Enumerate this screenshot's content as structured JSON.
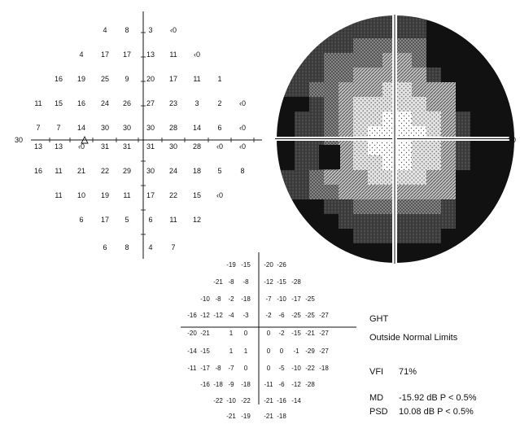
{
  "threshold_map": {
    "axis_extent_label": "30",
    "rows": [
      [
        "4",
        "8",
        "3",
        "‹0"
      ],
      [
        "4",
        "17",
        "17",
        "13",
        "11",
        "‹0"
      ],
      [
        "16",
        "19",
        "25",
        "9",
        "20",
        "17",
        "11",
        "1"
      ],
      [
        "11",
        "15",
        "16",
        "24",
        "26",
        "27",
        "23",
        "3",
        "2",
        "‹0"
      ],
      [
        "7",
        "7",
        "14",
        "30",
        "30",
        "30",
        "28",
        "14",
        "6",
        "‹0"
      ],
      [
        "13",
        "13",
        "‹0",
        "31",
        "31",
        "31",
        "30",
        "28",
        "‹0",
        "‹0"
      ],
      [
        "16",
        "11",
        "21",
        "22",
        "29",
        "30",
        "24",
        "18",
        "5",
        "8"
      ],
      [
        "11",
        "10",
        "19",
        "11",
        "17",
        "22",
        "15",
        "‹0"
      ],
      [
        "6",
        "17",
        "5",
        "6",
        "11",
        "12"
      ],
      [
        "6",
        "8",
        "4",
        "7"
      ]
    ]
  },
  "greyscale_map": {
    "axis_extent_label": "30"
  },
  "total_deviation": {
    "rows": [
      [
        "-19",
        "-15",
        "-20",
        "-26"
      ],
      [
        "-21",
        "-8",
        "-8",
        "-12",
        "-15",
        "-28"
      ],
      [
        "-10",
        "-8",
        "-2",
        "-18",
        "-7",
        "-10",
        "-17",
        "-25"
      ],
      [
        "-16",
        "-12",
        "-12",
        "-4",
        "-3",
        "-2",
        "-6",
        "-25",
        "-25",
        "-27"
      ],
      [
        "-20",
        "-21",
        "",
        "1",
        "0",
        "0",
        "-2",
        "-15",
        "-21",
        "-27"
      ],
      [
        "-14",
        "-15",
        "",
        "1",
        "1",
        "0",
        "0",
        "-1",
        "-29",
        "-27"
      ],
      [
        "-11",
        "-17",
        "-8",
        "-7",
        "0",
        "0",
        "-5",
        "-10",
        "-22",
        "-18"
      ],
      [
        "-16",
        "-18",
        "-9",
        "-18",
        "-11",
        "-6",
        "-12",
        "-28"
      ],
      [
        "-22",
        "-10",
        "-22",
        "-21",
        "-16",
        "-14"
      ],
      [
        "-21",
        "-19",
        "-21",
        "-18"
      ]
    ]
  },
  "summary": {
    "ght_label": "GHT",
    "ght_value": "Outside Normal Limits",
    "vfi_label": "VFI",
    "vfi_value": "71%",
    "md_label": "MD",
    "md_value": "-15.92 dB  P < 0.5%",
    "psd_label": "PSD",
    "psd_value": "10.08 dB  P < 0.5%"
  }
}
